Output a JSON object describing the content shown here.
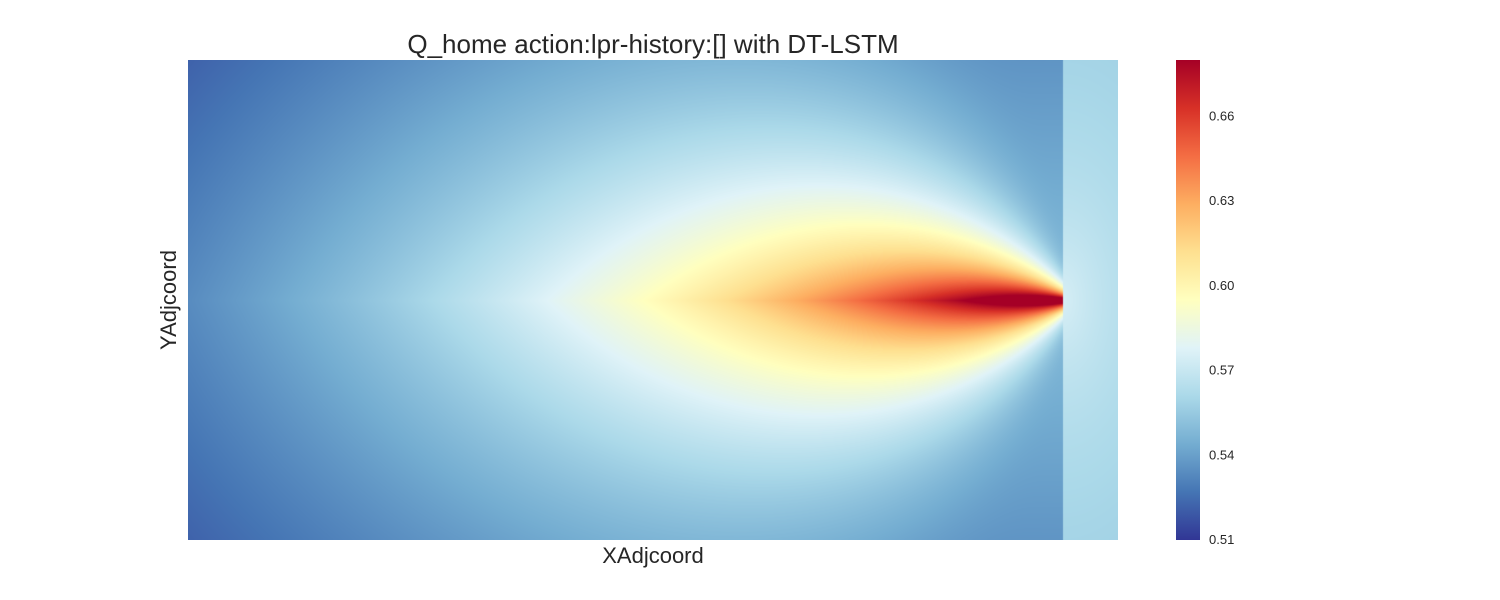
{
  "chart_data": {
    "type": "heatmap",
    "title": "Q_home action:lpr-history:[] with DT-LSTM",
    "xlabel": "XAdjcoord",
    "ylabel": "YAdjcoord",
    "colormap": "RdYlBu_r",
    "colorbar": {
      "vmin": 0.51,
      "vmax": 0.68,
      "ticks": [
        0.51,
        0.54,
        0.57,
        0.6,
        0.63,
        0.66
      ],
      "tick_labels": [
        "0.51",
        "0.54",
        "0.57",
        "0.60",
        "0.63",
        "0.66"
      ]
    },
    "field": {
      "description_of_peak_x_fraction": 0.94,
      "peak_value": 0.68,
      "min_value": 0.51
    }
  }
}
